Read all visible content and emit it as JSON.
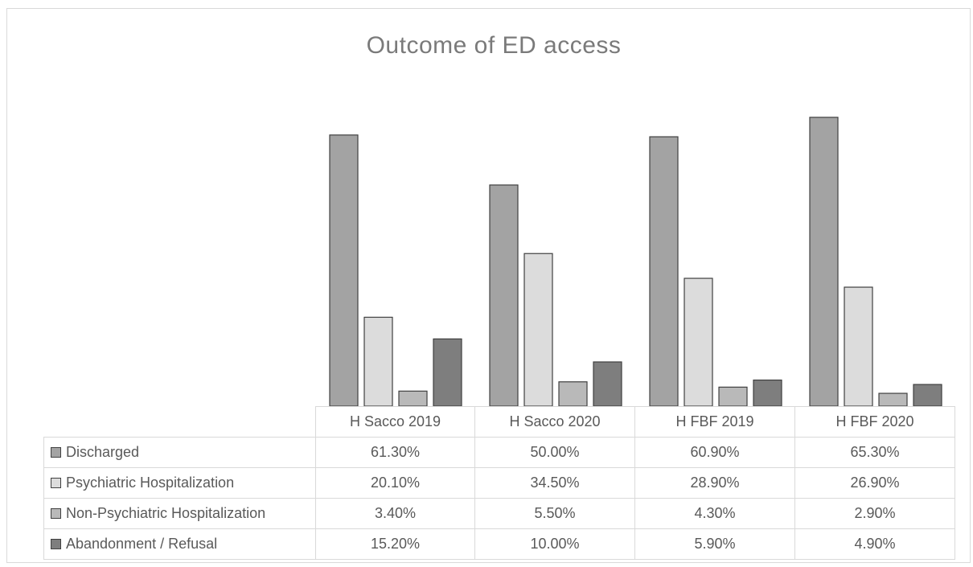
{
  "chart_data": {
    "type": "bar",
    "title": "Outcome of ED access",
    "xlabel": "",
    "ylabel": "",
    "ylim": [
      0,
      70
    ],
    "grid": false,
    "legend": "data-table",
    "categories": [
      "H Sacco 2019",
      "H Sacco 2020",
      "H FBF 2019",
      "H FBF 2020"
    ],
    "series": [
      {
        "name": "Discharged",
        "values": [
          61.3,
          50.0,
          60.9,
          65.3
        ],
        "labels": [
          "61.30%",
          "50.00%",
          "60.90%",
          "65.30%"
        ],
        "color": "#a3a3a3"
      },
      {
        "name": "Psychiatric Hospitalization",
        "values": [
          20.1,
          34.5,
          28.9,
          26.9
        ],
        "labels": [
          "20.10%",
          "34.50%",
          "28.90%",
          "26.90%"
        ],
        "color": "#dcdcdc"
      },
      {
        "name": "Non-Psychiatric Hospitalization",
        "values": [
          3.4,
          5.5,
          4.3,
          2.9
        ],
        "labels": [
          "3.40%",
          "5.50%",
          "4.30%",
          "2.90%"
        ],
        "color": "#b9b9b9"
      },
      {
        "name": "Abandonment / Refusal",
        "values": [
          15.2,
          10.0,
          5.9,
          4.9
        ],
        "labels": [
          "15.20%",
          "10.00%",
          "5.90%",
          "4.90%"
        ],
        "color": "#7e7e7e"
      }
    ]
  }
}
